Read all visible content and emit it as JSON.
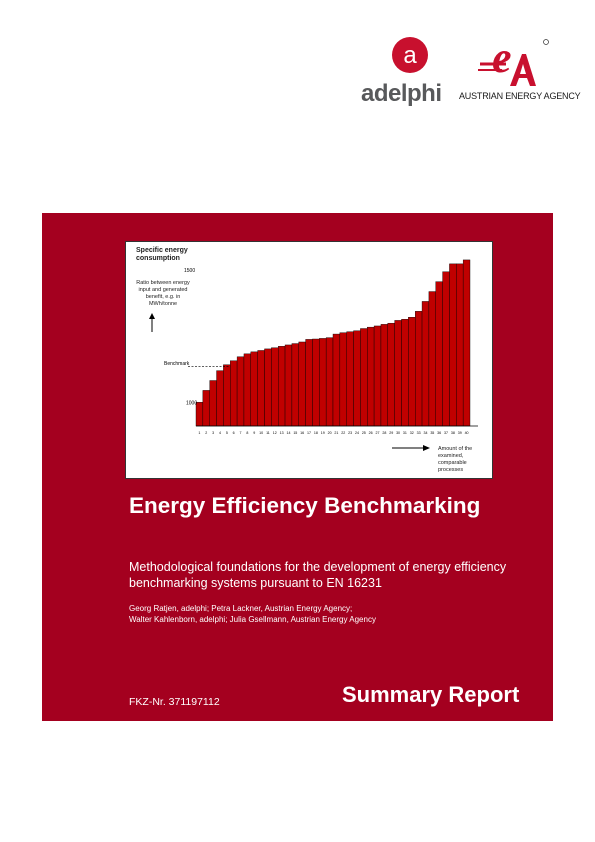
{
  "logos": {
    "adelphi_text": "adelphi",
    "adelphi_color": "#c8102e",
    "aea_text": "AUSTRIAN ENERGY AGENCY",
    "aea_color": "#c8102e"
  },
  "panel": {
    "background": "#a4001f",
    "title": "Energy Efficiency Benchmarking",
    "subtitle": "Methodological foundations for the development of energy efficiency benchmarking systems pursuant to EN 16231",
    "authors_line1": "Georg Ratjen, adelphi; Petra Lackner, Austrian Energy Agency;",
    "authors_line2": "Walter Kahlenborn, adelphi; Julia Gsellmann, Austrian Energy Agency",
    "fkz": "FKZ-Nr. 371197112",
    "report_label": "Summary Report"
  },
  "chart_data": {
    "type": "bar",
    "title": "Specific energy consumption",
    "ylabel": "Ratio between energy input and generated benefit, e.g. in MWh/tonne",
    "xlabel": "Amount of the examined, comparable processes",
    "y_tick_top": "1500",
    "y_tick_mid": "1000",
    "benchmark_label": "Benchmark",
    "categories": [
      "1",
      "2",
      "3",
      "4",
      "5",
      "6",
      "7",
      "8",
      "9",
      "10",
      "11",
      "12",
      "13",
      "14",
      "15",
      "16",
      "17",
      "18",
      "19",
      "20",
      "21",
      "22",
      "23",
      "24",
      "25",
      "26",
      "27",
      "28",
      "29",
      "30",
      "31",
      "32",
      "33",
      "34",
      "35",
      "36",
      "37",
      "38",
      "39",
      "40"
    ],
    "values": [
      1000,
      1060,
      1110,
      1160,
      1190,
      1210,
      1230,
      1245,
      1255,
      1262,
      1270,
      1276,
      1283,
      1290,
      1297,
      1305,
      1318,
      1320,
      1323,
      1327,
      1345,
      1352,
      1357,
      1362,
      1373,
      1380,
      1386,
      1394,
      1400,
      1414,
      1420,
      1430,
      1460,
      1510,
      1560,
      1610,
      1660,
      1700,
      1700,
      1720
    ],
    "ylim": [
      880,
      1760
    ],
    "benchmark_value": 1180,
    "bar_color": "#c00000",
    "grid": false
  }
}
